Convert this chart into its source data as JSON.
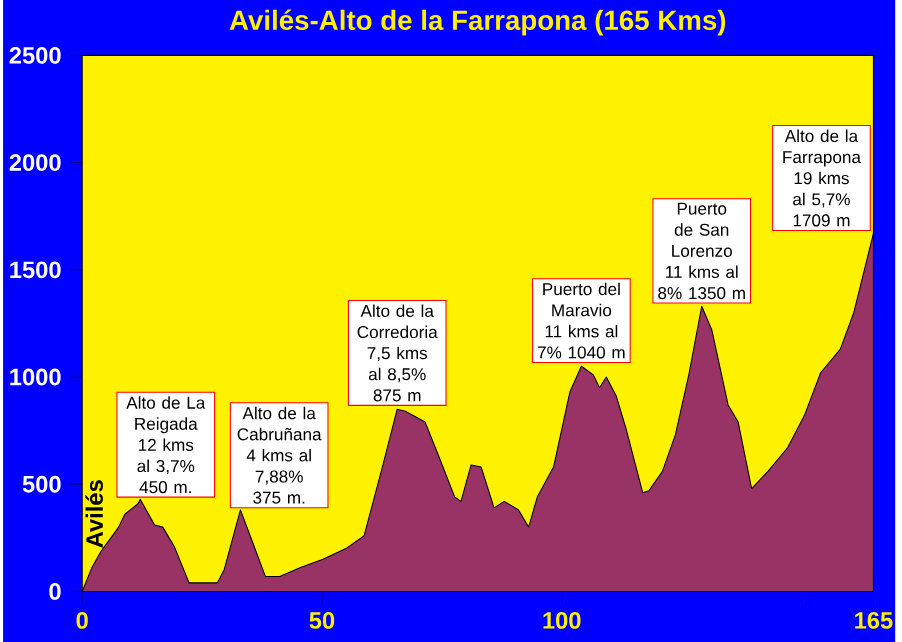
{
  "chart_data": {
    "type": "area",
    "title": "Avilés-Alto de la Farrapona (165 Kms)",
    "color": "#993366",
    "x": [
      0,
      2,
      4,
      6,
      7.6,
      8.9,
      11.7,
      12.1,
      15.1,
      16.8,
      19.2,
      22.3,
      28.2,
      29.6,
      33,
      35.7,
      38.2,
      41.2,
      45.4,
      50.2,
      55,
      58.8,
      62.6,
      65.7,
      67.4,
      71.5,
      74.2,
      77.7,
      79,
      81.1,
      83.2,
      85.9,
      88,
      91,
      93.1,
      94.9,
      98.3,
      101.7,
      104.1,
      106.6,
      107.9,
      109.3,
      111.4,
      113.4,
      116.9,
      118.2,
      121,
      123.7,
      126.5,
      129.2,
      131.3,
      134.7,
      136.8,
      139.6,
      143,
      147.1,
      150.6,
      154,
      158.1,
      160.9,
      165
    ],
    "values": [
      0,
      110,
      190,
      250,
      300,
      360,
      410,
      430,
      310,
      300,
      210,
      40,
      40,
      100,
      380,
      220,
      70,
      70,
      110,
      150,
      200,
      260,
      580,
      850,
      840,
      790,
      640,
      440,
      420,
      590,
      580,
      390,
      420,
      380,
      300,
      440,
      580,
      930,
      1050,
      1010,
      950,
      1000,
      910,
      760,
      460,
      470,
      560,
      730,
      1010,
      1330,
      1220,
      870,
      790,
      480,
      560,
      670,
      820,
      1020,
      1130,
      1300,
      1670
    ],
    "xlim": [
      0,
      165
    ],
    "ylim": [
      0,
      2500
    ],
    "xticks": [
      0,
      50,
      100,
      {
        "value": 150,
        "label": null
      },
      165
    ],
    "yticks": [
      0,
      500,
      1000,
      1500,
      2000,
      2500
    ],
    "annotations": [
      "Avilés",
      {
        "text": "Alto de La Reigada 12 kms al 3,7% 450 m.",
        "x": 12.1,
        "y": 425
      },
      {
        "text": "Alto de la Cabruñana 4 kms al 7,88% 375 m.",
        "x": 33,
        "y": 376
      },
      {
        "text": "Alto de la Corredoria 7,5 kms al 8,5% 875 m",
        "x": 65.7,
        "y": 853
      },
      {
        "text": "Puerto del Maravio 11 kms al 7% 1040 m",
        "x": 104.1,
        "y": 1053
      },
      {
        "text": "Puerto de San Lorenzo 11 kms al 8% 1350 m",
        "x": 129.2,
        "y": 1330
      },
      {
        "text": "Alto de la Farrapona 19 kms al 5,7% 1709 m",
        "x": 165,
        "y": 1669
      }
    ]
  }
}
